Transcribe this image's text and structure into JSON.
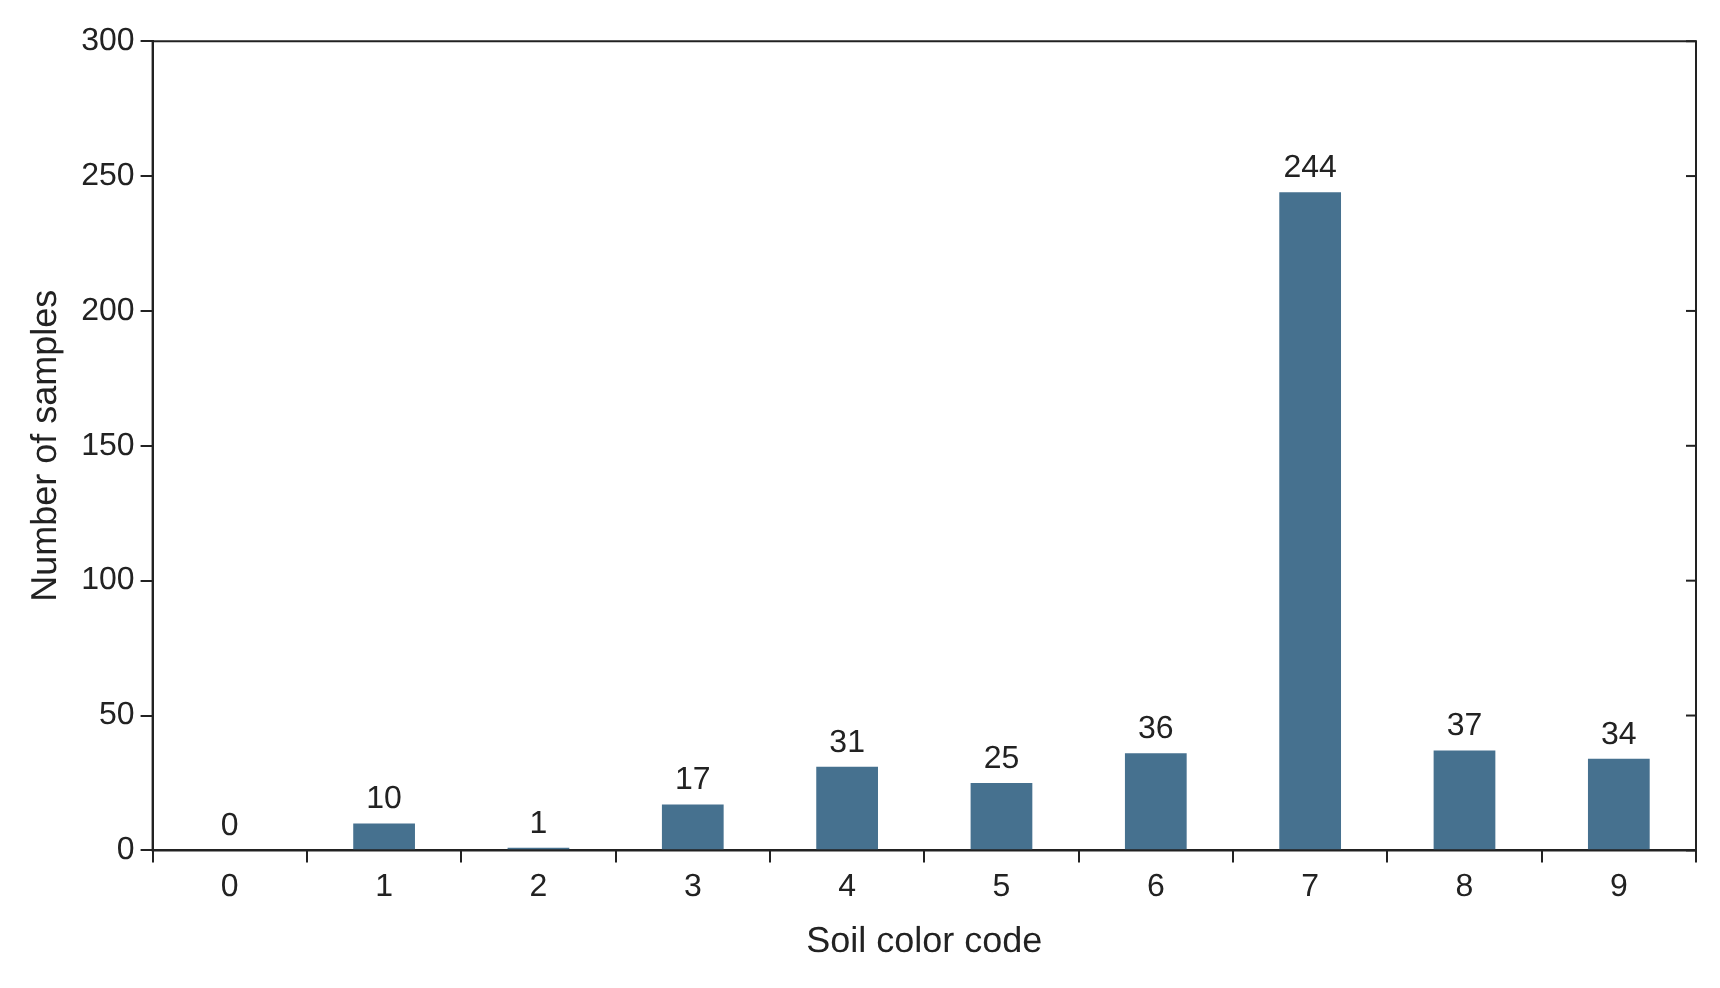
{
  "chart_data": {
    "type": "bar",
    "xlabel": "Soil color code",
    "ylabel": "Number of samples",
    "categories": [
      "0",
      "1",
      "2",
      "3",
      "4",
      "5",
      "6",
      "7",
      "8",
      "9"
    ],
    "values": [
      0,
      10,
      1,
      17,
      31,
      25,
      36,
      244,
      37,
      34
    ],
    "color": "#46718f",
    "ylim": [
      0,
      300
    ],
    "yticks": [
      0,
      50,
      100,
      150,
      200,
      250,
      300
    ],
    "data_labels": true
  }
}
